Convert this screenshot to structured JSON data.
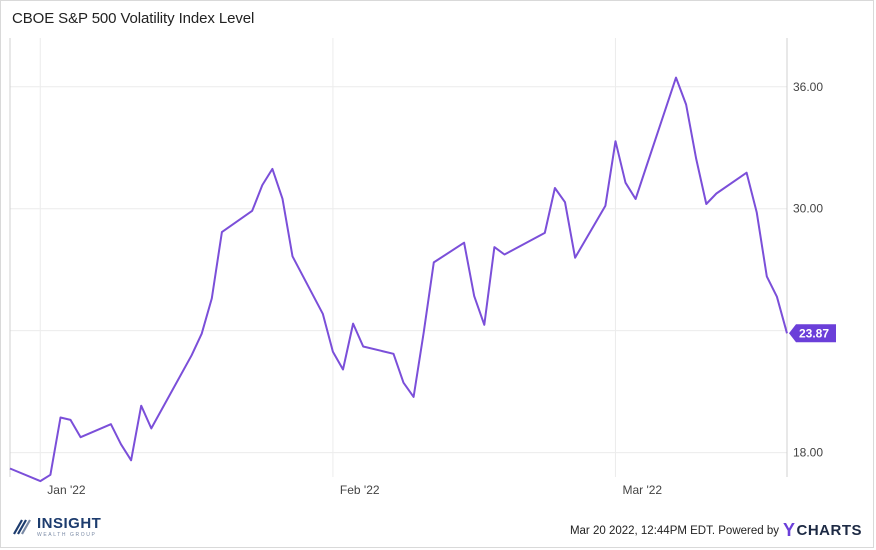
{
  "title": "CBOE S&P 500 Volatility Index Level",
  "colors": {
    "series": "#7b4fd9",
    "label_bg": "#6b3fd9"
  },
  "footer": {
    "text": "Mar 20 2022, 12:44PM EDT. Powered by",
    "brand_y": "Y",
    "brand_rest": "CHARTS"
  },
  "logo": {
    "name": "INSIGHT",
    "tagline": "WEALTH GROUP",
    "icon": "stripes-icon"
  },
  "chart_data": {
    "type": "line",
    "title": "CBOE S&P 500 Volatility Index Level",
    "xlabel": "",
    "ylabel": "",
    "ylim": [
      16.8,
      38.4
    ],
    "yticks": [
      18,
      24,
      30,
      36
    ],
    "ytick_labels": [
      "18.00",
      "24.00",
      "30.00",
      "36.00"
    ],
    "xticks": [
      {
        "date": "2022-01-03",
        "label": "Jan '22"
      },
      {
        "date": "2022-02-01",
        "label": "Feb '22"
      },
      {
        "date": "2022-03-01",
        "label": "Mar '22"
      }
    ],
    "grid": true,
    "last_value_label": "23.87",
    "series": [
      {
        "x": [
          "2021-12-31",
          "2022-01-03",
          "2022-01-04",
          "2022-01-05",
          "2022-01-06",
          "2022-01-07",
          "2022-01-10",
          "2022-01-11",
          "2022-01-12",
          "2022-01-13",
          "2022-01-14",
          "2022-01-18",
          "2022-01-19",
          "2022-01-20",
          "2022-01-21",
          "2022-01-24",
          "2022-01-25",
          "2022-01-26",
          "2022-01-27",
          "2022-01-28",
          "2022-01-31",
          "2022-02-01",
          "2022-02-02",
          "2022-02-03",
          "2022-02-04",
          "2022-02-07",
          "2022-02-08",
          "2022-02-09",
          "2022-02-10",
          "2022-02-11",
          "2022-02-14",
          "2022-02-15",
          "2022-02-16",
          "2022-02-17",
          "2022-02-18",
          "2022-02-22",
          "2022-02-23",
          "2022-02-24",
          "2022-02-25",
          "2022-02-28",
          "2022-03-01",
          "2022-03-02",
          "2022-03-03",
          "2022-03-04",
          "2022-03-07",
          "2022-03-08",
          "2022-03-09",
          "2022-03-10",
          "2022-03-11",
          "2022-03-14",
          "2022-03-15",
          "2022-03-16",
          "2022-03-17",
          "2022-03-18"
        ],
        "y": [
          17.22,
          16.6,
          16.91,
          19.73,
          19.61,
          18.76,
          19.4,
          18.41,
          17.62,
          20.31,
          19.19,
          22.79,
          23.85,
          25.59,
          28.85,
          29.9,
          31.16,
          31.96,
          30.49,
          27.66,
          24.83,
          22.96,
          22.09,
          24.35,
          23.22,
          22.86,
          21.44,
          20.74,
          23.91,
          27.36,
          28.33,
          25.7,
          24.29,
          28.11,
          27.75,
          28.81,
          31.02,
          30.32,
          27.59,
          30.15,
          33.32,
          31.28,
          30.48,
          31.98,
          36.45,
          35.13,
          32.45,
          30.23,
          30.75,
          31.77,
          29.83,
          26.67,
          25.67,
          23.87
        ]
      }
    ]
  }
}
